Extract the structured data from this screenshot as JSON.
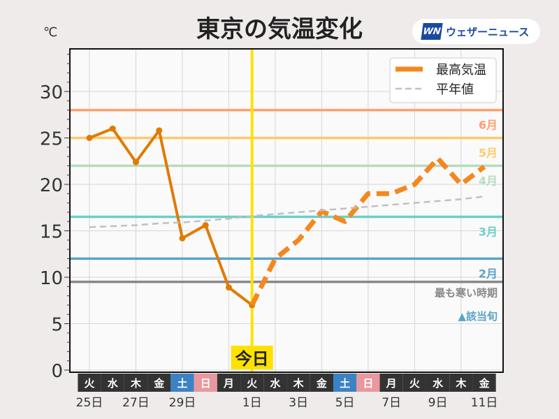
{
  "header": {
    "title": "東京の気温変化",
    "logo_text": "ウェザーニュース",
    "logo_mark": "WN"
  },
  "chart_data": {
    "type": "line",
    "title": "東京の気温変化",
    "ylabel": "℃",
    "ylim": [
      0,
      34
    ],
    "yticks": [
      0,
      5,
      10,
      15,
      20,
      25,
      30
    ],
    "grid": true,
    "legend_position": "top-right",
    "weekdays": [
      "火",
      "水",
      "木",
      "金",
      "土",
      "日",
      "月",
      "火",
      "水",
      "木",
      "金",
      "土",
      "日",
      "月",
      "火",
      "水",
      "木",
      "金"
    ],
    "weekday_colors": {
      "土": "#3b82c4",
      "日": "#e8989e",
      "default": "#333333"
    },
    "date_labels": [
      "25日",
      "",
      "27日",
      "",
      "29日",
      "",
      "",
      "1日",
      "",
      "3日",
      "",
      "5日",
      "",
      "7日",
      "",
      "9日",
      "",
      "11日"
    ],
    "today_index": 7,
    "today_label": "今日",
    "today_color": "#ffe100",
    "series": [
      {
        "name": "最高気温",
        "style": "solid",
        "color": "#e07b00",
        "values": [
          25.0,
          26.0,
          22.4,
          25.8,
          14.2,
          15.6,
          8.9,
          7.0,
          null,
          null,
          null,
          null,
          null,
          null,
          null,
          null,
          null,
          null
        ]
      },
      {
        "name": "最高気温",
        "style": "dashed",
        "color": "#f5871f",
        "values": [
          null,
          null,
          null,
          null,
          null,
          null,
          null,
          7.0,
          12.0,
          14.0,
          17.1,
          16.0,
          19.0,
          19.0,
          20.0,
          22.8,
          20.0,
          21.9
        ]
      },
      {
        "name": "平年値",
        "style": "dashed",
        "color": "#c0c0c0",
        "values": [
          15.4,
          15.5,
          15.6,
          15.8,
          15.9,
          16.1,
          16.3,
          16.6,
          16.8,
          17.0,
          17.2,
          17.4,
          17.6,
          17.8,
          18.0,
          18.2,
          18.4,
          18.7
        ]
      }
    ],
    "legend": [
      {
        "label": "最高気温",
        "color": "#f5871f"
      },
      {
        "label": "平年値",
        "color": "#c0c0c0"
      }
    ],
    "reference_lines": [
      {
        "label": "6月",
        "value": 28,
        "color": "#ff9e6e"
      },
      {
        "label": "5月",
        "value": 25,
        "color": "#ffc96b"
      },
      {
        "label": "4月",
        "value": 22,
        "color": "#b5dcbc"
      },
      {
        "label": "3月",
        "value": 16.5,
        "color": "#6ccfc8"
      },
      {
        "label": "2月",
        "value": 12,
        "color": "#5aa2c8"
      },
      {
        "label": "最も寒い時期",
        "value": 9.5,
        "color": "#888888"
      }
    ],
    "footnote": "▲該当旬",
    "footnote_color": "#5aa2c8"
  }
}
